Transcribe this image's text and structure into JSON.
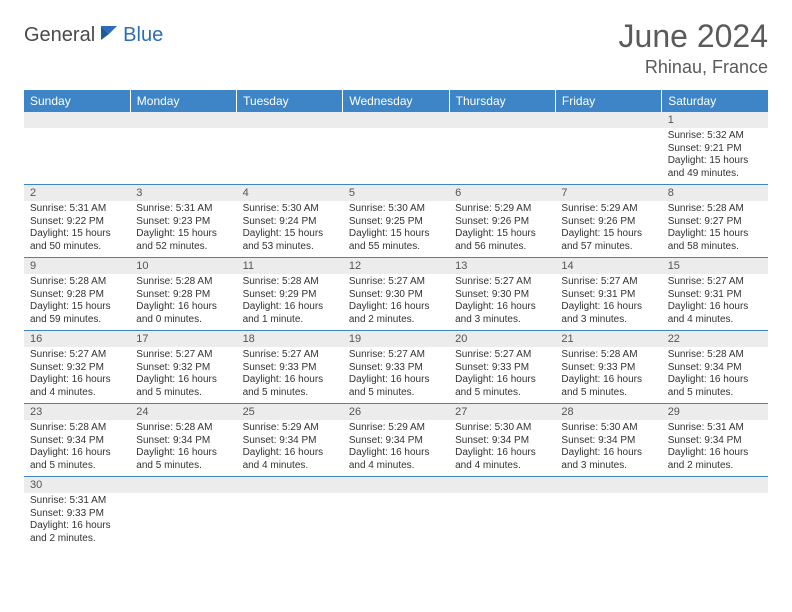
{
  "logo": {
    "general": "General",
    "blue": "Blue"
  },
  "title": {
    "month": "June 2024",
    "location": "Rhinau, France"
  },
  "colors": {
    "header_bg": "#3d85c6",
    "header_text": "#ffffff",
    "daynum_bg": "#ececec",
    "border": "#3d85c6",
    "text": "#333333",
    "logo_blue": "#2a6ebb"
  },
  "weekdays": [
    "Sunday",
    "Monday",
    "Tuesday",
    "Wednesday",
    "Thursday",
    "Friday",
    "Saturday"
  ],
  "weeks": [
    [
      null,
      null,
      null,
      null,
      null,
      null,
      {
        "day": "1",
        "sunrise": "Sunrise: 5:32 AM",
        "sunset": "Sunset: 9:21 PM",
        "daylight": "Daylight: 15 hours and 49 minutes."
      }
    ],
    [
      {
        "day": "2",
        "sunrise": "Sunrise: 5:31 AM",
        "sunset": "Sunset: 9:22 PM",
        "daylight": "Daylight: 15 hours and 50 minutes."
      },
      {
        "day": "3",
        "sunrise": "Sunrise: 5:31 AM",
        "sunset": "Sunset: 9:23 PM",
        "daylight": "Daylight: 15 hours and 52 minutes."
      },
      {
        "day": "4",
        "sunrise": "Sunrise: 5:30 AM",
        "sunset": "Sunset: 9:24 PM",
        "daylight": "Daylight: 15 hours and 53 minutes."
      },
      {
        "day": "5",
        "sunrise": "Sunrise: 5:30 AM",
        "sunset": "Sunset: 9:25 PM",
        "daylight": "Daylight: 15 hours and 55 minutes."
      },
      {
        "day": "6",
        "sunrise": "Sunrise: 5:29 AM",
        "sunset": "Sunset: 9:26 PM",
        "daylight": "Daylight: 15 hours and 56 minutes."
      },
      {
        "day": "7",
        "sunrise": "Sunrise: 5:29 AM",
        "sunset": "Sunset: 9:26 PM",
        "daylight": "Daylight: 15 hours and 57 minutes."
      },
      {
        "day": "8",
        "sunrise": "Sunrise: 5:28 AM",
        "sunset": "Sunset: 9:27 PM",
        "daylight": "Daylight: 15 hours and 58 minutes."
      }
    ],
    [
      {
        "day": "9",
        "sunrise": "Sunrise: 5:28 AM",
        "sunset": "Sunset: 9:28 PM",
        "daylight": "Daylight: 15 hours and 59 minutes."
      },
      {
        "day": "10",
        "sunrise": "Sunrise: 5:28 AM",
        "sunset": "Sunset: 9:28 PM",
        "daylight": "Daylight: 16 hours and 0 minutes."
      },
      {
        "day": "11",
        "sunrise": "Sunrise: 5:28 AM",
        "sunset": "Sunset: 9:29 PM",
        "daylight": "Daylight: 16 hours and 1 minute."
      },
      {
        "day": "12",
        "sunrise": "Sunrise: 5:27 AM",
        "sunset": "Sunset: 9:30 PM",
        "daylight": "Daylight: 16 hours and 2 minutes."
      },
      {
        "day": "13",
        "sunrise": "Sunrise: 5:27 AM",
        "sunset": "Sunset: 9:30 PM",
        "daylight": "Daylight: 16 hours and 3 minutes."
      },
      {
        "day": "14",
        "sunrise": "Sunrise: 5:27 AM",
        "sunset": "Sunset: 9:31 PM",
        "daylight": "Daylight: 16 hours and 3 minutes."
      },
      {
        "day": "15",
        "sunrise": "Sunrise: 5:27 AM",
        "sunset": "Sunset: 9:31 PM",
        "daylight": "Daylight: 16 hours and 4 minutes."
      }
    ],
    [
      {
        "day": "16",
        "sunrise": "Sunrise: 5:27 AM",
        "sunset": "Sunset: 9:32 PM",
        "daylight": "Daylight: 16 hours and 4 minutes."
      },
      {
        "day": "17",
        "sunrise": "Sunrise: 5:27 AM",
        "sunset": "Sunset: 9:32 PM",
        "daylight": "Daylight: 16 hours and 5 minutes."
      },
      {
        "day": "18",
        "sunrise": "Sunrise: 5:27 AM",
        "sunset": "Sunset: 9:33 PM",
        "daylight": "Daylight: 16 hours and 5 minutes."
      },
      {
        "day": "19",
        "sunrise": "Sunrise: 5:27 AM",
        "sunset": "Sunset: 9:33 PM",
        "daylight": "Daylight: 16 hours and 5 minutes."
      },
      {
        "day": "20",
        "sunrise": "Sunrise: 5:27 AM",
        "sunset": "Sunset: 9:33 PM",
        "daylight": "Daylight: 16 hours and 5 minutes."
      },
      {
        "day": "21",
        "sunrise": "Sunrise: 5:28 AM",
        "sunset": "Sunset: 9:33 PM",
        "daylight": "Daylight: 16 hours and 5 minutes."
      },
      {
        "day": "22",
        "sunrise": "Sunrise: 5:28 AM",
        "sunset": "Sunset: 9:34 PM",
        "daylight": "Daylight: 16 hours and 5 minutes."
      }
    ],
    [
      {
        "day": "23",
        "sunrise": "Sunrise: 5:28 AM",
        "sunset": "Sunset: 9:34 PM",
        "daylight": "Daylight: 16 hours and 5 minutes."
      },
      {
        "day": "24",
        "sunrise": "Sunrise: 5:28 AM",
        "sunset": "Sunset: 9:34 PM",
        "daylight": "Daylight: 16 hours and 5 minutes."
      },
      {
        "day": "25",
        "sunrise": "Sunrise: 5:29 AM",
        "sunset": "Sunset: 9:34 PM",
        "daylight": "Daylight: 16 hours and 4 minutes."
      },
      {
        "day": "26",
        "sunrise": "Sunrise: 5:29 AM",
        "sunset": "Sunset: 9:34 PM",
        "daylight": "Daylight: 16 hours and 4 minutes."
      },
      {
        "day": "27",
        "sunrise": "Sunrise: 5:30 AM",
        "sunset": "Sunset: 9:34 PM",
        "daylight": "Daylight: 16 hours and 4 minutes."
      },
      {
        "day": "28",
        "sunrise": "Sunrise: 5:30 AM",
        "sunset": "Sunset: 9:34 PM",
        "daylight": "Daylight: 16 hours and 3 minutes."
      },
      {
        "day": "29",
        "sunrise": "Sunrise: 5:31 AM",
        "sunset": "Sunset: 9:34 PM",
        "daylight": "Daylight: 16 hours and 2 minutes."
      }
    ],
    [
      {
        "day": "30",
        "sunrise": "Sunrise: 5:31 AM",
        "sunset": "Sunset: 9:33 PM",
        "daylight": "Daylight: 16 hours and 2 minutes."
      },
      null,
      null,
      null,
      null,
      null,
      null
    ]
  ]
}
